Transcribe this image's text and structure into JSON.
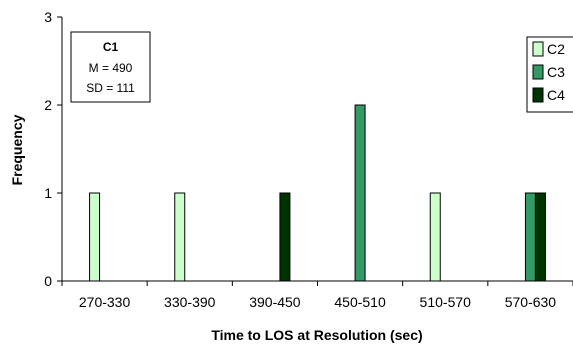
{
  "chart_data": {
    "type": "bar",
    "xlabel": "Time to LOS at Resolution (sec)",
    "ylabel": "Frequency",
    "categories": [
      "270-330",
      "330-390",
      "390-450",
      "450-510",
      "510-570",
      "570-630"
    ],
    "ylim": [
      0,
      3
    ],
    "yticks": [
      "0",
      "1",
      "2",
      "3"
    ],
    "grid": false,
    "legend_position": "right",
    "series": [
      {
        "name": "C2",
        "color": "#ccffcc",
        "values": [
          1,
          1,
          0,
          0,
          1,
          0
        ]
      },
      {
        "name": "C3",
        "color": "#339966",
        "values": [
          0,
          0,
          0,
          2,
          0,
          1
        ]
      },
      {
        "name": "C4",
        "color": "#003300",
        "values": [
          0,
          0,
          1,
          0,
          0,
          1
        ]
      }
    ],
    "stats_box": {
      "title": "C1",
      "mean": "M = 490",
      "sd": "SD = 111"
    }
  }
}
